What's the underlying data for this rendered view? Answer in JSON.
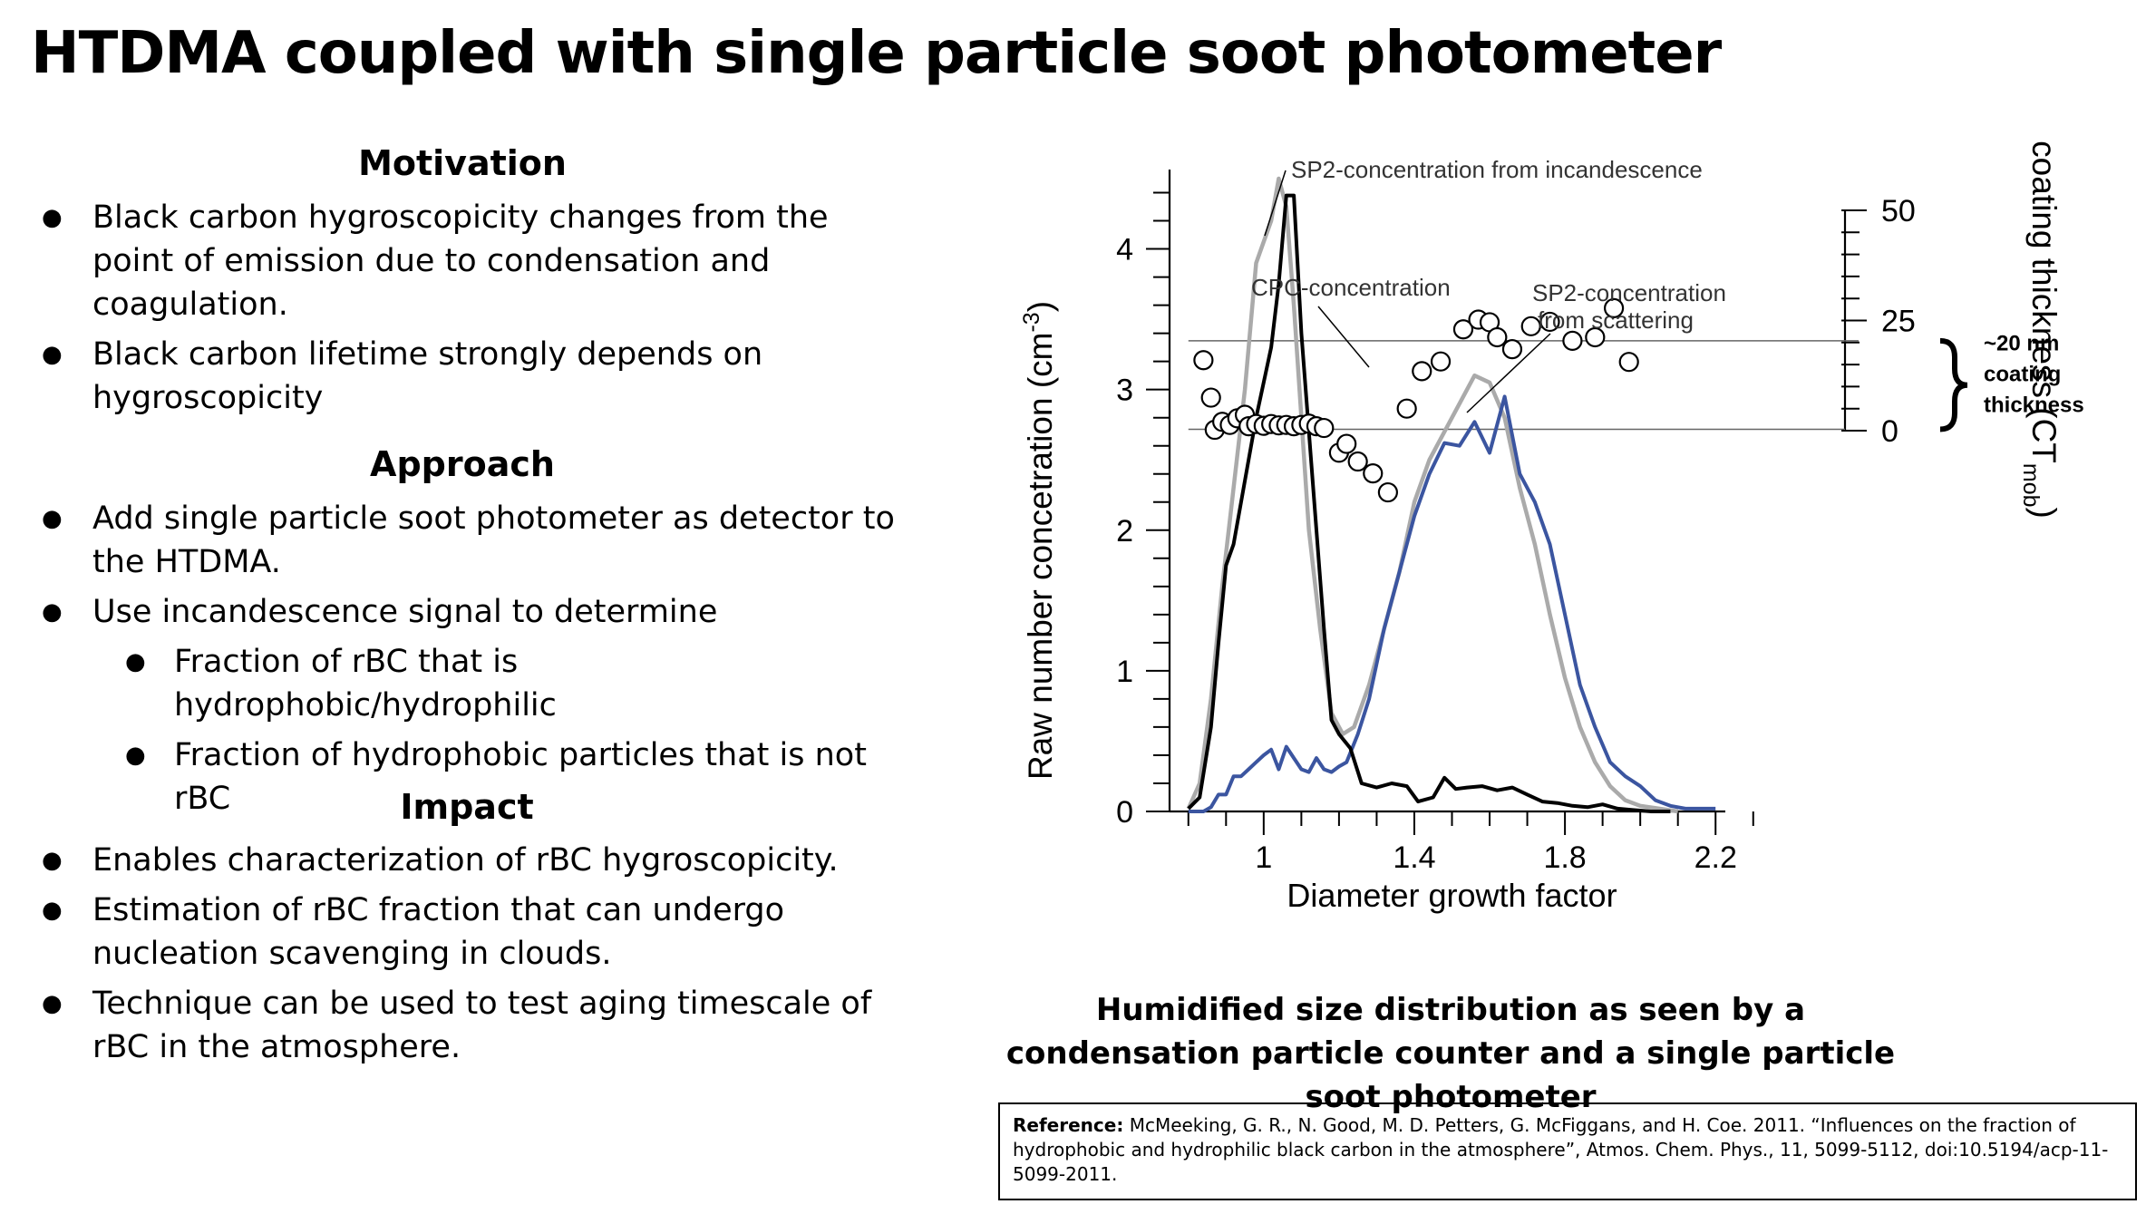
{
  "slide": {
    "title": "HTDMA coupled with single particle soot photometer"
  },
  "motivation": {
    "heading": "Motivation",
    "bullets": [
      "Black carbon hygroscopicity changes from the point of emission due to condensation and coagulation.",
      "Black carbon lifetime strongly depends on hygroscopicity"
    ]
  },
  "approach": {
    "heading": "Approach",
    "bullets": [
      "Add single particle soot photometer as detector to the HTDMA.",
      "Use incandescence signal to determine"
    ],
    "subbullets": [
      "Fraction of rBC that is hydrophobic/hydrophilic",
      "Fraction of hydrophobic particles that is not rBC"
    ]
  },
  "impact": {
    "heading": "Impact",
    "bullets": [
      "Enables characterization of rBC hygroscopicity.",
      "Estimation of rBC fraction that can undergo nucleation scavenging in clouds.",
      "Technique can be used to test aging timescale of rBC in the atmosphere."
    ]
  },
  "caption": "Humidified size distribution as seen by a condensation particle counter and a single particle soot photometer",
  "reference": {
    "label": "Reference:",
    "text": "McMeeking, G. R., N. Good, M. D. Petters, G. McFiggans, and H. Coe. 2011. “Influences on the fraction of hydrophobic and hydrophilic black carbon in the atmosphere”, Atmos. Chem. Phys., 11, 5099-5112, doi:10.5194/acp-11-5099-2011."
  },
  "chart_data": {
    "type": "line",
    "xlabel": "Diameter growth factor",
    "ylabel": "Raw number concetration (cm",
    "ylabel_sup": "-3",
    "ylabel_close": ")",
    "y2label": "coating thickness (CT",
    "y2label_sub": "mob",
    "y2label_close": ")",
    "xlim": [
      0.75,
      2.25
    ],
    "ylim": [
      0,
      4.5
    ],
    "y2lim": [
      0,
      50
    ],
    "x_ticks": [
      "1",
      "1.4",
      "1.8",
      "2.2"
    ],
    "y_ticks": [
      "0",
      "1",
      "2",
      "3",
      "4"
    ],
    "y2_ticks": [
      "0",
      "25",
      "50"
    ],
    "colors": {
      "incandescence": "#000000",
      "cpc": "#aaaaaa",
      "scattering": "#3b55a0",
      "points": "#000000",
      "ref_lines": "#555555"
    },
    "series": [
      {
        "name": "SP2-concentration from incandescence",
        "x": [
          0.8,
          0.83,
          0.86,
          0.88,
          0.9,
          0.92,
          0.94,
          0.96,
          0.98,
          1.0,
          1.02,
          1.04,
          1.06,
          1.08,
          1.1,
          1.12,
          1.14,
          1.16,
          1.18,
          1.2,
          1.23,
          1.26,
          1.3,
          1.34,
          1.38,
          1.41,
          1.45,
          1.48,
          1.51,
          1.54,
          1.58,
          1.62,
          1.66,
          1.7,
          1.74,
          1.78,
          1.82,
          1.86,
          1.9,
          1.94,
          1.98,
          2.03,
          2.08
        ],
        "values": [
          0.02,
          0.1,
          0.6,
          1.2,
          1.75,
          1.9,
          2.2,
          2.5,
          2.8,
          3.05,
          3.3,
          3.75,
          4.38,
          4.38,
          3.4,
          2.7,
          2.0,
          1.3,
          0.65,
          0.55,
          0.45,
          0.2,
          0.17,
          0.2,
          0.18,
          0.07,
          0.1,
          0.24,
          0.16,
          0.17,
          0.18,
          0.15,
          0.17,
          0.12,
          0.07,
          0.06,
          0.04,
          0.03,
          0.05,
          0.02,
          0.01,
          0.0,
          0.0
        ]
      },
      {
        "name": "CPC-concentration",
        "x": [
          0.8,
          0.83,
          0.86,
          0.89,
          0.92,
          0.95,
          0.98,
          1.0,
          1.02,
          1.04,
          1.06,
          1.08,
          1.1,
          1.12,
          1.15,
          1.18,
          1.21,
          1.24,
          1.28,
          1.32,
          1.36,
          1.4,
          1.44,
          1.48,
          1.52,
          1.56,
          1.6,
          1.64,
          1.68,
          1.72,
          1.76,
          1.8,
          1.84,
          1.88,
          1.92,
          1.96,
          2.0,
          2.05,
          2.1
        ],
        "values": [
          0.02,
          0.2,
          0.8,
          1.6,
          2.3,
          3.0,
          3.9,
          4.05,
          4.2,
          4.5,
          4.3,
          3.6,
          2.8,
          2.0,
          1.3,
          0.7,
          0.55,
          0.6,
          0.9,
          1.3,
          1.7,
          2.2,
          2.5,
          2.7,
          2.9,
          3.1,
          3.05,
          2.8,
          2.3,
          1.9,
          1.4,
          0.95,
          0.6,
          0.35,
          0.18,
          0.08,
          0.04,
          0.02,
          0.0
        ]
      },
      {
        "name": "SP2-concentration from scattering",
        "x": [
          0.8,
          0.84,
          0.86,
          0.88,
          0.9,
          0.92,
          0.94,
          0.96,
          0.98,
          1.0,
          1.02,
          1.04,
          1.06,
          1.08,
          1.1,
          1.12,
          1.14,
          1.16,
          1.18,
          1.2,
          1.22,
          1.25,
          1.28,
          1.32,
          1.36,
          1.4,
          1.44,
          1.48,
          1.52,
          1.56,
          1.6,
          1.64,
          1.68,
          1.72,
          1.76,
          1.8,
          1.84,
          1.88,
          1.92,
          1.96,
          2.0,
          2.04,
          2.08,
          2.12,
          2.2
        ],
        "values": [
          0.0,
          0.0,
          0.03,
          0.12,
          0.12,
          0.25,
          0.25,
          0.3,
          0.35,
          0.4,
          0.44,
          0.3,
          0.46,
          0.38,
          0.3,
          0.28,
          0.38,
          0.3,
          0.28,
          0.32,
          0.35,
          0.55,
          0.8,
          1.3,
          1.7,
          2.1,
          2.4,
          2.62,
          2.6,
          2.77,
          2.55,
          2.95,
          2.4,
          2.2,
          1.9,
          1.4,
          0.9,
          0.6,
          0.35,
          0.25,
          0.18,
          0.08,
          0.04,
          0.02,
          0.02
        ]
      }
    ],
    "scatter_points": {
      "name": "coating thickness",
      "x": [
        0.84,
        0.86,
        0.87,
        0.89,
        0.91,
        0.93,
        0.95,
        0.96,
        0.98,
        1.0,
        1.02,
        1.04,
        1.06,
        1.08,
        1.1,
        1.12,
        1.14,
        1.16,
        1.2,
        1.22,
        1.25,
        1.29,
        1.33,
        1.38,
        1.42,
        1.47,
        1.53,
        1.57,
        1.6,
        1.62,
        1.66,
        1.71,
        1.76,
        1.82,
        1.88,
        1.93,
        1.97
      ],
      "values": [
        16.0,
        7.5,
        0.2,
        2.0,
        1.3,
        2.8,
        3.6,
        1.0,
        1.5,
        1.1,
        1.5,
        1.2,
        1.3,
        1.0,
        1.3,
        1.6,
        1.0,
        0.6,
        -5.0,
        -3.0,
        -7.0,
        -9.7,
        -14.0,
        5.0,
        13.5,
        15.7,
        23.0,
        25.2,
        24.6,
        21.2,
        18.5,
        23.7,
        24.7,
        20.4,
        21.2,
        27.8,
        15.6
      ]
    },
    "coating_reference_values": [
      20.4,
      0.3
    ],
    "annotations": {
      "incandescence": "SP2-concentration from incandescence",
      "cpc": "CPC-concentration",
      "scattering_1": "SP2-concentration",
      "scattering_2": "from scattering",
      "coating_1": "~20 nm",
      "coating_2": "coating",
      "coating_3": "thickness"
    },
    "grid": false
  }
}
